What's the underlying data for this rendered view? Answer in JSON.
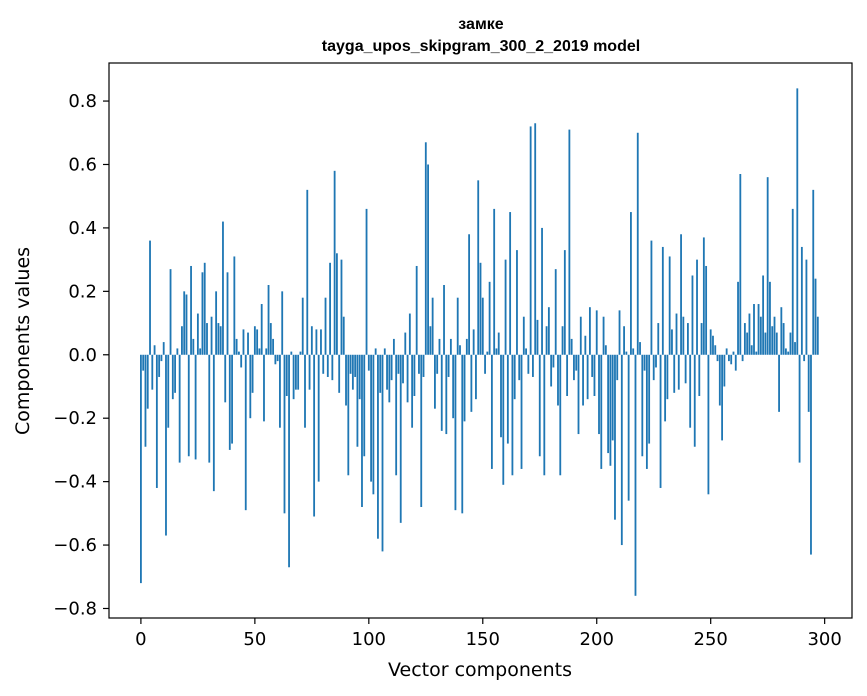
{
  "chart_data": {
    "type": "bar",
    "title": "замке",
    "subtitle": "tayga_upos_skipgram_300_2_2019 model",
    "xlabel": "Vector components",
    "ylabel": "Components values",
    "xlim": [
      -14,
      312
    ],
    "ylim": [
      -0.83,
      0.92
    ],
    "xticks": [
      0,
      50,
      100,
      150,
      200,
      250,
      300
    ],
    "yticks": [
      -0.8,
      -0.6,
      -0.4,
      -0.2,
      0.0,
      0.2,
      0.4,
      0.6,
      0.8
    ],
    "ytick_labels": [
      "−0.8",
      "−0.6",
      "−0.4",
      "−0.2",
      "0.0",
      "0.2",
      "0.4",
      "0.6",
      "0.8"
    ],
    "grid": false,
    "bar_color": "#1f77b4",
    "values": [
      -0.72,
      -0.05,
      -0.29,
      -0.17,
      0.36,
      -0.11,
      0.03,
      -0.42,
      -0.07,
      -0.02,
      0.04,
      -0.57,
      -0.23,
      0.27,
      -0.14,
      -0.12,
      0.02,
      -0.34,
      0.09,
      0.2,
      0.19,
      -0.32,
      0.28,
      0.05,
      -0.33,
      0.13,
      0.02,
      0.26,
      0.29,
      0.1,
      -0.34,
      0.12,
      -0.43,
      0.2,
      0.1,
      0.09,
      0.42,
      -0.15,
      0.26,
      -0.3,
      -0.28,
      0.31,
      0.05,
      0.01,
      -0.04,
      0.08,
      -0.49,
      0.07,
      -0.2,
      -0.12,
      0.09,
      0.08,
      0.02,
      0.16,
      -0.21,
      0.02,
      0.22,
      0.1,
      0.05,
      -0.03,
      -0.02,
      -0.23,
      0.2,
      -0.5,
      -0.13,
      -0.67,
      0.01,
      -0.14,
      -0.11,
      -0.11,
      0.01,
      0.18,
      -0.23,
      0.52,
      -0.11,
      0.09,
      -0.51,
      0.08,
      -0.4,
      0.08,
      -0.06,
      0.18,
      -0.07,
      0.29,
      -0.08,
      0.58,
      0.32,
      -0.12,
      0.3,
      0.12,
      -0.16,
      -0.38,
      -0.06,
      -0.11,
      -0.07,
      -0.29,
      -0.14,
      -0.48,
      -0.32,
      0.46,
      -0.05,
      -0.4,
      -0.44,
      0.02,
      -0.58,
      -0.12,
      -0.62,
      0.02,
      -0.11,
      -0.15,
      -0.08,
      0.05,
      -0.38,
      -0.06,
      -0.53,
      -0.09,
      0.07,
      -0.15,
      0.13,
      -0.23,
      -0.13,
      0.28,
      -0.06,
      -0.48,
      -0.07,
      0.67,
      0.6,
      0.09,
      0.18,
      -0.17,
      -0.06,
      0.05,
      -0.24,
      0.22,
      -0.25,
      -0.07,
      0.05,
      -0.2,
      -0.49,
      0.18,
      0.03,
      -0.5,
      -0.21,
      0.05,
      0.38,
      -0.18,
      0.08,
      -0.14,
      0.55,
      0.29,
      0.18,
      -0.06,
      0.01,
      0.23,
      -0.36,
      0.46,
      0.02,
      0.07,
      -0.26,
      -0.41,
      0.3,
      -0.28,
      0.45,
      -0.38,
      -0.14,
      0.33,
      -0.08,
      -0.36,
      0.12,
      0.02,
      -0.06,
      0.72,
      -0.07,
      0.73,
      0.11,
      -0.32,
      0.4,
      -0.38,
      0.09,
      0.15,
      -0.1,
      -0.04,
      0.27,
      -0.16,
      -0.38,
      0.09,
      0.33,
      -0.13,
      0.71,
      0.05,
      -0.08,
      -0.05,
      -0.25,
      0.12,
      -0.16,
      0.06,
      -0.14,
      0.15,
      -0.07,
      -0.13,
      0.14,
      -0.25,
      -0.36,
      0.12,
      0.03,
      -0.31,
      -0.35,
      -0.27,
      -0.52,
      -0.08,
      0.14,
      -0.6,
      0.09,
      0.01,
      -0.46,
      0.45,
      0.02,
      -0.76,
      0.7,
      0.04,
      -0.32,
      -0.05,
      -0.36,
      -0.28,
      0.36,
      -0.08,
      -0.04,
      0.1,
      -0.42,
      0.34,
      -0.21,
      -0.14,
      0.31,
      0.08,
      -0.12,
      0.13,
      -0.11,
      0.38,
      0.12,
      -0.09,
      0.1,
      -0.23,
      0.25,
      -0.29,
      0.3,
      -0.13,
      0.1,
      0.37,
      0.28,
      -0.44,
      0.08,
      0.06,
      0.03,
      -0.02,
      -0.16,
      -0.27,
      -0.1,
      0.02,
      -0.02,
      -0.03,
      0.01,
      -0.05,
      0.23,
      0.57,
      -0.02,
      0.1,
      0.07,
      0.13,
      0.03,
      0.16,
      0.01,
      0.16,
      0.12,
      0.25,
      0.07,
      0.56,
      0.23,
      0.09,
      0.12,
      0.07,
      -0.18,
      0.15,
      0.1,
      0.02,
      0.01,
      0.07,
      0.46,
      0.04,
      0.84,
      -0.34,
      0.34,
      -0.02,
      0.3,
      -0.18,
      -0.63,
      0.52,
      0.24,
      0.12
    ]
  }
}
